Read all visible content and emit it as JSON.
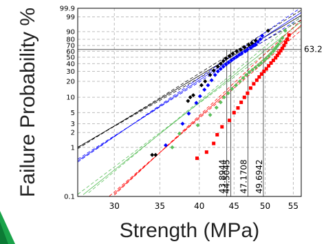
{
  "chart_data": {
    "type": "scatter",
    "title": "",
    "xlabel": "Strength (MPa)",
    "ylabel": "Failure Probability %",
    "scale": "weibull-probability",
    "xlim": [
      26.5,
      56.5
    ],
    "ylim": [
      0.1,
      99.9
    ],
    "x_ticks": [
      30,
      35,
      40,
      45,
      50,
      55
    ],
    "y_ticks": [
      0.1,
      1,
      2,
      3,
      5,
      10,
      20,
      30,
      40,
      50,
      60,
      70,
      80,
      90,
      99,
      99.9
    ],
    "y_tick_labels": [
      "0.1",
      "1",
      "2",
      "3",
      "5",
      "10",
      "20",
      "30",
      "40",
      "50",
      "60",
      "70",
      "80",
      "90",
      "99",
      "99.9"
    ],
    "grid": true,
    "reference_line": {
      "y": 63.2,
      "label": "63.2"
    },
    "characteristic_strengths": [
      {
        "x": 43.8944,
        "label": "43.8944",
        "color": "#000000"
      },
      {
        "x": 44.5045,
        "label": "44.5045",
        "color": "#0000ff"
      },
      {
        "x": 47.1708,
        "label": "47.1708",
        "color": "#5cbf5c"
      },
      {
        "x": 49.6942,
        "label": "49.6942",
        "color": "#ff0000"
      }
    ],
    "series": [
      {
        "color": "#000000",
        "marker": "diamond",
        "points": [
          [
            34.1,
            0.7
          ],
          [
            34.5,
            0.7
          ],
          [
            38.5,
            8.5
          ],
          [
            38.8,
            10
          ],
          [
            39.2,
            11
          ],
          [
            40.3,
            17
          ],
          [
            40.8,
            20
          ],
          [
            41.5,
            26
          ],
          [
            42.0,
            31
          ],
          [
            42.6,
            36
          ],
          [
            43.0,
            40
          ],
          [
            43.4,
            44
          ],
          [
            43.8,
            48
          ],
          [
            44.3,
            52
          ],
          [
            44.8,
            56
          ],
          [
            45.4,
            60
          ],
          [
            46.0,
            63
          ],
          [
            46.6,
            67
          ],
          [
            47.3,
            71
          ],
          [
            47.8,
            74
          ],
          [
            48.4,
            78
          ],
          [
            49.5,
            85
          ],
          [
            50.5,
            91
          ]
        ]
      },
      {
        "color": "#0000ff",
        "marker": "diamond",
        "points": [
          [
            35.7,
            1.1
          ],
          [
            37.8,
            3.0
          ],
          [
            38.6,
            4.8
          ],
          [
            39.6,
            7.8
          ],
          [
            40.1,
            10.5
          ],
          [
            40.7,
            14
          ],
          [
            41.2,
            17
          ],
          [
            41.7,
            21
          ],
          [
            42.2,
            26
          ],
          [
            42.6,
            30
          ],
          [
            43.0,
            33
          ],
          [
            43.4,
            36
          ],
          [
            43.8,
            39
          ],
          [
            44.2,
            42
          ],
          [
            44.6,
            45
          ],
          [
            45.0,
            48
          ],
          [
            45.4,
            51
          ],
          [
            45.8,
            54
          ],
          [
            46.2,
            57
          ],
          [
            46.7,
            60
          ],
          [
            47.1,
            63
          ],
          [
            47.6,
            66
          ],
          [
            48.0,
            69
          ],
          [
            48.4,
            72
          ],
          [
            48.8,
            76
          ],
          [
            49.2,
            80
          ],
          [
            49.5,
            85
          ]
        ]
      },
      {
        "color": "#5cbf5c",
        "marker": "diamond",
        "points": [
          [
            36.5,
            1.0
          ],
          [
            37.4,
            1.9
          ],
          [
            39.8,
            2.8
          ],
          [
            41.5,
            4.5
          ],
          [
            42.4,
            6.3
          ],
          [
            43.0,
            8.0
          ],
          [
            43.5,
            10
          ],
          [
            44.1,
            12
          ],
          [
            44.7,
            14.5
          ],
          [
            45.3,
            17
          ],
          [
            45.9,
            20
          ],
          [
            46.4,
            23
          ],
          [
            46.9,
            26
          ],
          [
            47.4,
            29
          ],
          [
            47.9,
            32
          ],
          [
            48.4,
            35
          ],
          [
            48.9,
            38
          ],
          [
            49.3,
            41
          ],
          [
            49.8,
            45
          ],
          [
            50.2,
            48
          ],
          [
            50.6,
            52
          ],
          [
            51.0,
            56
          ],
          [
            51.4,
            60
          ],
          [
            51.7,
            64
          ],
          [
            52.0,
            68
          ],
          [
            52.3,
            72
          ],
          [
            52.6,
            77
          ],
          [
            53.0,
            82
          ],
          [
            53.5,
            91
          ]
        ]
      },
      {
        "color": "#ff0000",
        "marker": "square",
        "points": [
          [
            39.7,
            0.6
          ],
          [
            41.0,
            0.8
          ],
          [
            42.0,
            1.2
          ],
          [
            42.5,
            1.8
          ],
          [
            43.2,
            2.6
          ],
          [
            44.3,
            3.5
          ],
          [
            45.0,
            5.0
          ],
          [
            45.6,
            6.2
          ],
          [
            46.1,
            8.0
          ],
          [
            46.6,
            10
          ],
          [
            47.1,
            12
          ],
          [
            47.6,
            15
          ],
          [
            48.1,
            18
          ],
          [
            48.6,
            21
          ],
          [
            49.0,
            24
          ],
          [
            49.4,
            27
          ],
          [
            49.8,
            30
          ],
          [
            50.2,
            33
          ],
          [
            50.6,
            37
          ],
          [
            51.0,
            41
          ],
          [
            51.4,
            45
          ],
          [
            51.8,
            49
          ],
          [
            52.1,
            53
          ],
          [
            52.4,
            57
          ],
          [
            52.7,
            61
          ],
          [
            53.0,
            65
          ],
          [
            53.3,
            70
          ],
          [
            53.6,
            75
          ],
          [
            53.9,
            80
          ],
          [
            54.2,
            86
          ]
        ]
      }
    ],
    "fit_lines": [
      {
        "color": "#000000",
        "eta": 46.5,
        "beta": 8.2,
        "style": "solid"
      },
      {
        "color": "#000000",
        "eta": 45.6,
        "beta": 8.6,
        "style": "dashed"
      },
      {
        "color": "#000000",
        "eta": 47.4,
        "beta": 7.9,
        "style": "dashed"
      },
      {
        "color": "#0000ff",
        "eta": 46.8,
        "beta": 9.2,
        "style": "solid"
      },
      {
        "color": "#0000ff",
        "eta": 46.0,
        "beta": 9.6,
        "style": "dashed"
      },
      {
        "color": "#0000ff",
        "eta": 47.6,
        "beta": 8.8,
        "style": "dashed"
      },
      {
        "color": "#5cbf5c",
        "eta": 50.2,
        "beta": 11.0,
        "style": "solid"
      },
      {
        "color": "#5cbf5c",
        "eta": 49.4,
        "beta": 11.5,
        "style": "dashed"
      },
      {
        "color": "#5cbf5c",
        "eta": 51.0,
        "beta": 10.4,
        "style": "dashed"
      },
      {
        "color": "#ff0000",
        "eta": 51.6,
        "beta": 12.5,
        "style": "solid"
      },
      {
        "color": "#ff0000",
        "eta": 50.8,
        "beta": 13.0,
        "style": "dashed"
      },
      {
        "color": "#ff0000",
        "eta": 52.4,
        "beta": 12.0,
        "style": "dashed"
      }
    ]
  }
}
